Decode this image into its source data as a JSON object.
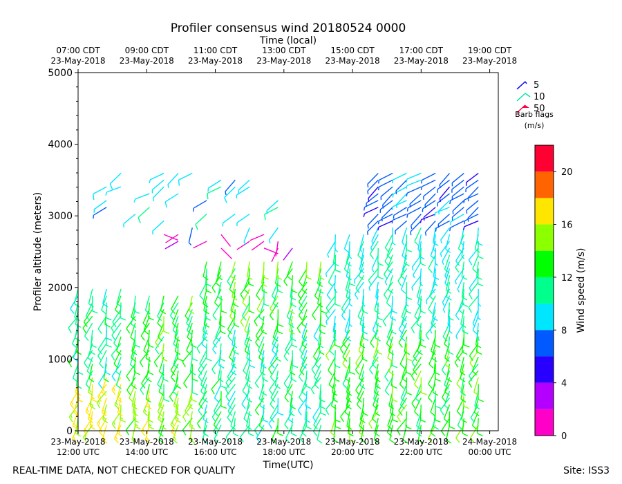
{
  "chart_data": {
    "type": "wind-barb-profile",
    "title": "Profiler consensus wind 20180524 0000",
    "top_axis_label": "Time (local)",
    "xlabel": "Time(UTC)",
    "ylabel": "Profiler altitude (meters)",
    "ylim": [
      0,
      5000
    ],
    "y_ticks": [
      0,
      1000,
      2000,
      3000,
      4000,
      5000
    ],
    "x_range_hours_utc": [
      12,
      24.25
    ],
    "x_ticks_utc": [
      {
        "hour": 12,
        "line1": "23-May-2018",
        "line2": "12:00 UTC"
      },
      {
        "hour": 14,
        "line1": "23-May-2018",
        "line2": "14:00 UTC"
      },
      {
        "hour": 16,
        "line1": "23-May-2018",
        "line2": "16:00 UTC"
      },
      {
        "hour": 18,
        "line1": "23-May-2018",
        "line2": "18:00 UTC"
      },
      {
        "hour": 20,
        "line1": "23-May-2018",
        "line2": "20:00 UTC"
      },
      {
        "hour": 22,
        "line1": "23-May-2018",
        "line2": "22:00 UTC"
      },
      {
        "hour": 24,
        "line1": "24-May-2018",
        "line2": "00:00 UTC"
      }
    ],
    "x_ticks_local": [
      {
        "hour": 12,
        "line1": "07:00 CDT",
        "line2": "23-May-2018"
      },
      {
        "hour": 14,
        "line1": "09:00 CDT",
        "line2": "23-May-2018"
      },
      {
        "hour": 16,
        "line1": "11:00 CDT",
        "line2": "23-May-2018"
      },
      {
        "hour": 18,
        "line1": "13:00 CDT",
        "line2": "23-May-2018"
      },
      {
        "hour": 20,
        "line1": "15:00 CDT",
        "line2": "23-May-2018"
      },
      {
        "hour": 22,
        "line1": "17:00 CDT",
        "line2": "23-May-2018"
      },
      {
        "hour": 24,
        "line1": "19:00 CDT",
        "line2": "23-May-2018"
      }
    ],
    "barb_legend": {
      "title": "Barb flags",
      "units": "(m/s)",
      "items": [
        {
          "label": "5",
          "color": "#0000ff"
        },
        {
          "label": "10",
          "color": "#00e6a0"
        },
        {
          "label": "50",
          "color": "#ff0040"
        }
      ]
    },
    "colorbar": {
      "label": "Wind speed (m/s)",
      "min": 0,
      "max": 22,
      "ticks": [
        0,
        4,
        8,
        12,
        16,
        20
      ],
      "bins": [
        {
          "from": 0,
          "to": 2,
          "color": "#ff00c8"
        },
        {
          "from": 2,
          "to": 4,
          "color": "#b400ff"
        },
        {
          "from": 4,
          "to": 6,
          "color": "#2800ff"
        },
        {
          "from": 6,
          "to": 8,
          "color": "#005aff"
        },
        {
          "from": 8,
          "to": 10,
          "color": "#00e6ff"
        },
        {
          "from": 10,
          "to": 12,
          "color": "#00ff8c"
        },
        {
          "from": 12,
          "to": 14,
          "color": "#00ff00"
        },
        {
          "from": 14,
          "to": 16,
          "color": "#8cff00"
        },
        {
          "from": 16,
          "to": 18,
          "color": "#ffe600"
        },
        {
          "from": 18,
          "to": 20,
          "color": "#ff6400"
        },
        {
          "from": 20,
          "to": 22,
          "color": "#ff0032"
        }
      ]
    },
    "profile_times_utc": [
      12.0,
      12.42,
      12.83,
      13.25,
      13.67,
      14.08,
      14.5,
      14.92,
      15.33,
      15.75,
      16.17,
      16.58,
      17.0,
      17.42,
      17.83,
      18.25,
      18.67,
      19.08,
      19.5,
      19.92,
      20.33,
      20.75,
      21.17,
      21.58,
      22.0,
      22.42,
      22.83,
      23.25,
      23.67
    ],
    "speed_regimes": [
      {
        "t0": 12,
        "t1": 13.5,
        "z0": 0,
        "z1": 800,
        "speed": 17
      },
      {
        "t0": 12,
        "t1": 13.5,
        "z0": 800,
        "z1": 2000,
        "speed": 11
      },
      {
        "t0": 13.5,
        "t1": 15.5,
        "z0": 0,
        "z1": 600,
        "speed": 15
      },
      {
        "t0": 13.5,
        "t1": 15.5,
        "z0": 600,
        "z1": 1900,
        "speed": 13
      },
      {
        "t0": 15.5,
        "t1": 19.5,
        "z0": 0,
        "z1": 1600,
        "speed": 11
      },
      {
        "t0": 15.5,
        "t1": 19.5,
        "z0": 1600,
        "z1": 2400,
        "speed": 13
      },
      {
        "t0": 19.5,
        "t1": 24,
        "z0": 0,
        "z1": 1500,
        "speed": 13
      },
      {
        "t0": 19.5,
        "t1": 24,
        "z0": 1500,
        "z1": 2900,
        "speed": 10
      },
      {
        "t0": 20.5,
        "t1": 24,
        "z0": 2900,
        "z1": 3600,
        "speed": 7
      },
      {
        "t0": 14,
        "t1": 18.5,
        "z0": 2550,
        "z1": 2800,
        "speed": 1
      },
      {
        "t0": 12.5,
        "t1": 18.5,
        "z0": 2800,
        "z1": 4000,
        "speed": 9
      }
    ]
  },
  "footer": {
    "left": "REAL-TIME DATA, NOT CHECKED FOR QUALITY",
    "right": "Site: ISS3"
  }
}
